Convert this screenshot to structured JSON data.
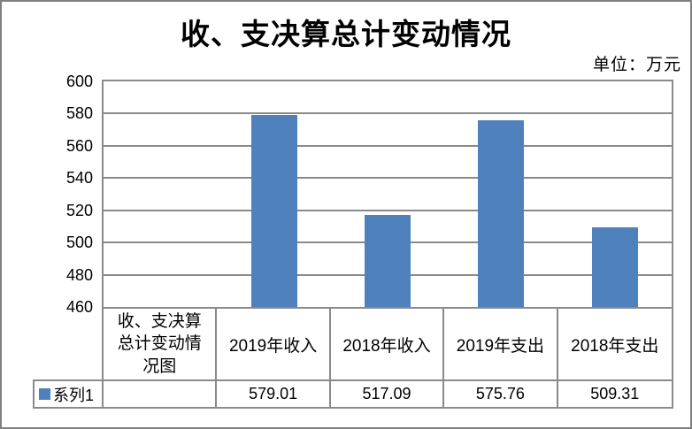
{
  "chart_data": {
    "type": "bar",
    "title": "收、支决算总计变动情况",
    "unit_label": "单位：万元",
    "corner_label": "收、支决算总计变动情况图",
    "categories": [
      "2019年收入",
      "2018年收入",
      "2019年支出",
      "2018年支出"
    ],
    "series": [
      {
        "name": "系列1",
        "values": [
          579.01,
          517.09,
          575.76,
          509.31
        ]
      }
    ],
    "ylim": [
      460,
      600
    ],
    "yticks": [
      600,
      580,
      560,
      540,
      520,
      500,
      480,
      460
    ],
    "grid": true,
    "legend_position": "data-table-left",
    "data_table_shown": true,
    "bar_color": "#4F81BD",
    "grid_color": "#8A8A8A",
    "frame_color": "#808080"
  }
}
